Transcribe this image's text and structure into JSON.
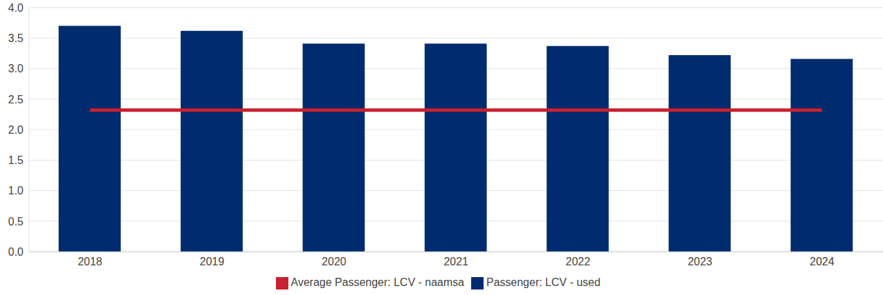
{
  "chart_data": {
    "type": "bar",
    "categories": [
      "2018",
      "2019",
      "2020",
      "2021",
      "2022",
      "2023",
      "2024"
    ],
    "series": [
      {
        "name": "Passenger: LCV - used",
        "type": "bar",
        "color": "#002b6f",
        "values": [
          3.7,
          3.62,
          3.41,
          3.41,
          3.37,
          3.22,
          3.16
        ]
      },
      {
        "name": "Average Passenger: LCV - naamsa",
        "type": "line",
        "color": "#c8212f",
        "values": [
          2.32,
          2.32,
          2.32,
          2.32,
          2.32,
          2.32,
          2.32
        ]
      }
    ],
    "ylim": [
      0,
      4
    ],
    "yticks": [
      {
        "value": 0,
        "label": "0.0"
      },
      0.5,
      {
        "value": 1,
        "label": "1.0"
      },
      1.5,
      {
        "value": 2,
        "label": "2.0"
      },
      2.5,
      {
        "value": 3,
        "label": "3.0"
      },
      3.5,
      {
        "value": 4,
        "label": "4.0"
      }
    ],
    "grid": true,
    "legend": "bottom"
  }
}
